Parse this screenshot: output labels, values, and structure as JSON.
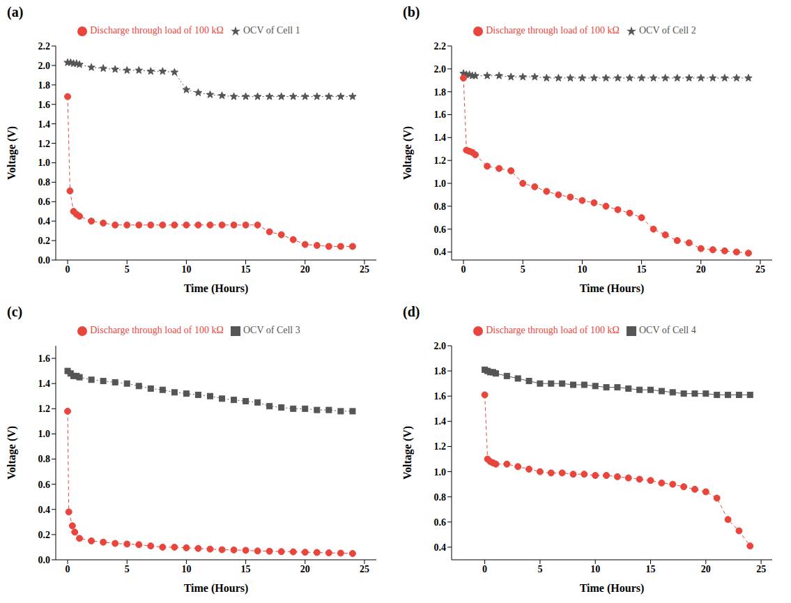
{
  "chart_data": [
    {
      "label": "(a)",
      "type": "line",
      "x_label": "Time (Hours)",
      "y_label": "Voltage (V)",
      "xlim": [
        -1,
        26
      ],
      "xticks": [
        0,
        5,
        10,
        15,
        20,
        25
      ],
      "ylim": [
        0,
        2.2
      ],
      "yticks": [
        {
          "value": 0,
          "label": "0.0"
        },
        0.2,
        0.4,
        0.6,
        0.8,
        {
          "value": 1,
          "label": "1.0"
        },
        1.2,
        1.4,
        1.6,
        1.8,
        {
          "value": 2,
          "label": "2.0"
        },
        2.2
      ],
      "grid": false,
      "legend": "top",
      "series": [
        {
          "name": "OCV of Cell 1",
          "color": "#555555",
          "marker": "star",
          "line_style": "dotted",
          "x": [
            0,
            0.25,
            0.5,
            0.75,
            1,
            2,
            3,
            4,
            5,
            6,
            7,
            8,
            9,
            10,
            11,
            12,
            13,
            14,
            15,
            16,
            17,
            18,
            19,
            20,
            21,
            22,
            23,
            24
          ],
          "values": [
            2.03,
            2.03,
            2.02,
            2.02,
            2.01,
            1.98,
            1.97,
            1.96,
            1.95,
            1.95,
            1.94,
            1.94,
            1.93,
            1.75,
            1.72,
            1.7,
            1.69,
            1.68,
            1.68,
            1.68,
            1.68,
            1.68,
            1.68,
            1.68,
            1.68,
            1.68,
            1.68,
            1.68
          ]
        },
        {
          "name": "Discharge through load of 100 kΩ",
          "color": "#e8463c",
          "marker": "circle",
          "line_style": "dashed",
          "x": [
            0,
            0.2,
            0.5,
            0.75,
            1,
            2,
            3,
            4,
            5,
            6,
            7,
            8,
            9,
            10,
            11,
            12,
            13,
            14,
            15,
            16,
            17,
            18,
            19,
            20,
            21,
            22,
            23,
            24
          ],
          "values": [
            1.68,
            0.71,
            0.5,
            0.47,
            0.45,
            0.4,
            0.38,
            0.36,
            0.36,
            0.36,
            0.36,
            0.36,
            0.36,
            0.36,
            0.36,
            0.36,
            0.36,
            0.36,
            0.36,
            0.36,
            0.29,
            0.26,
            0.21,
            0.16,
            0.15,
            0.14,
            0.14,
            0.14
          ]
        }
      ]
    },
    {
      "label": "(b)",
      "type": "line",
      "x_label": "Time (Hours)",
      "y_label": "Voltage (V)",
      "xlim": [
        -1,
        26
      ],
      "xticks": [
        0,
        5,
        10,
        15,
        20,
        25
      ],
      "ylim": [
        0.33,
        2.2
      ],
      "yticks": [
        0.4,
        0.6,
        0.8,
        {
          "value": 1,
          "label": "1.0"
        },
        1.2,
        1.4,
        1.6,
        1.8,
        {
          "value": 2,
          "label": "2.0"
        },
        2.2
      ],
      "grid": false,
      "legend": "top",
      "series": [
        {
          "name": "OCV of Cell 2",
          "color": "#555555",
          "marker": "star",
          "line_style": "dotted",
          "x": [
            0,
            0.25,
            0.5,
            0.75,
            1,
            2,
            3,
            4,
            5,
            6,
            7,
            8,
            9,
            10,
            11,
            12,
            13,
            14,
            15,
            16,
            17,
            18,
            19,
            20,
            21,
            22,
            23,
            24
          ],
          "values": [
            1.96,
            1.95,
            1.95,
            1.94,
            1.94,
            1.94,
            1.94,
            1.93,
            1.93,
            1.93,
            1.92,
            1.92,
            1.92,
            1.92,
            1.92,
            1.92,
            1.92,
            1.92,
            1.92,
            1.92,
            1.92,
            1.92,
            1.92,
            1.92,
            1.92,
            1.92,
            1.92,
            1.92
          ]
        },
        {
          "name": "Discharge through load of 100 kΩ",
          "color": "#e8463c",
          "marker": "circle",
          "line_style": "dashed",
          "x": [
            0,
            0.25,
            0.5,
            0.75,
            1,
            2,
            3,
            4,
            5,
            6,
            7,
            8,
            9,
            10,
            11,
            12,
            13,
            14,
            15,
            16,
            17,
            18,
            19,
            20,
            21,
            22,
            23,
            24
          ],
          "values": [
            1.92,
            1.29,
            1.28,
            1.27,
            1.25,
            1.15,
            1.13,
            1.11,
            1.0,
            0.97,
            0.93,
            0.9,
            0.88,
            0.85,
            0.83,
            0.8,
            0.77,
            0.74,
            0.7,
            0.6,
            0.55,
            0.5,
            0.48,
            0.43,
            0.42,
            0.41,
            0.4,
            0.39
          ]
        }
      ]
    },
    {
      "label": "(c)",
      "type": "line",
      "x_label": "Time (Hours)",
      "y_label": "Voltage (V)",
      "xlim": [
        -1,
        26
      ],
      "xticks": [
        0,
        5,
        10,
        15,
        20,
        25
      ],
      "ylim": [
        0,
        1.7
      ],
      "yticks": [
        {
          "value": 0,
          "label": "0.0"
        },
        0.2,
        0.4,
        0.6,
        0.8,
        {
          "value": 1,
          "label": "1.0"
        },
        1.2,
        1.4,
        1.6
      ],
      "grid": false,
      "legend": "top",
      "series": [
        {
          "name": "OCV of Cell 3",
          "color": "#555555",
          "marker": "square",
          "line_style": "dotted",
          "x": [
            0,
            0.25,
            0.5,
            0.75,
            1,
            2,
            3,
            4,
            5,
            6,
            7,
            8,
            9,
            10,
            11,
            12,
            13,
            14,
            15,
            16,
            17,
            18,
            19,
            20,
            21,
            22,
            23,
            24
          ],
          "values": [
            1.5,
            1.48,
            1.46,
            1.46,
            1.45,
            1.43,
            1.42,
            1.41,
            1.4,
            1.38,
            1.36,
            1.35,
            1.33,
            1.32,
            1.31,
            1.3,
            1.28,
            1.27,
            1.26,
            1.25,
            1.22,
            1.21,
            1.2,
            1.2,
            1.19,
            1.19,
            1.18,
            1.18
          ]
        },
        {
          "name": "Discharge through load of 100 kΩ",
          "color": "#e8463c",
          "marker": "circle",
          "line_style": "dashed",
          "x": [
            0,
            0.1,
            0.4,
            0.6,
            1,
            2,
            3,
            4,
            5,
            6,
            7,
            8,
            9,
            10,
            11,
            12,
            13,
            14,
            15,
            16,
            17,
            18,
            19,
            20,
            21,
            22,
            23,
            24
          ],
          "values": [
            1.18,
            0.38,
            0.27,
            0.22,
            0.17,
            0.15,
            0.14,
            0.13,
            0.125,
            0.12,
            0.11,
            0.1,
            0.1,
            0.095,
            0.09,
            0.085,
            0.08,
            0.078,
            0.075,
            0.07,
            0.068,
            0.065,
            0.063,
            0.06,
            0.058,
            0.055,
            0.053,
            0.05
          ]
        }
      ]
    },
    {
      "label": "(d)",
      "type": "line",
      "x_label": "Time (Hours)",
      "y_label": "Voltage (V)",
      "xlim": [
        -3,
        26
      ],
      "xticks": [
        0,
        5,
        10,
        15,
        20,
        25
      ],
      "ylim": [
        0.3,
        2.0
      ],
      "yticks": [
        0.4,
        0.6,
        0.8,
        {
          "value": 1,
          "label": "1.0"
        },
        1.2,
        1.4,
        1.6,
        1.8,
        {
          "value": 2,
          "label": "2.0"
        }
      ],
      "grid": false,
      "legend": "top",
      "series": [
        {
          "name": "OCV of Cell 4",
          "color": "#555555",
          "marker": "square",
          "line_style": "solid",
          "x": [
            0,
            0.25,
            0.5,
            0.75,
            1,
            2,
            3,
            4,
            5,
            6,
            7,
            8,
            9,
            10,
            11,
            12,
            13,
            14,
            15,
            16,
            17,
            18,
            19,
            20,
            21,
            22,
            23,
            24
          ],
          "values": [
            1.81,
            1.8,
            1.79,
            1.79,
            1.78,
            1.76,
            1.74,
            1.72,
            1.7,
            1.7,
            1.7,
            1.69,
            1.69,
            1.68,
            1.67,
            1.67,
            1.66,
            1.65,
            1.65,
            1.64,
            1.63,
            1.62,
            1.62,
            1.62,
            1.61,
            1.61,
            1.61,
            1.61
          ]
        },
        {
          "name": "Discharge through load of 100 kΩ",
          "color": "#e8463c",
          "marker": "circle",
          "line_style": "dashed",
          "x": [
            0,
            0.25,
            0.5,
            0.75,
            1,
            2,
            3,
            4,
            5,
            6,
            7,
            8,
            9,
            10,
            11,
            12,
            13,
            14,
            15,
            16,
            17,
            18,
            19,
            20,
            21,
            22,
            23,
            24
          ],
          "values": [
            1.61,
            1.1,
            1.08,
            1.07,
            1.06,
            1.06,
            1.04,
            1.02,
            1.0,
            0.99,
            0.99,
            0.98,
            0.98,
            0.97,
            0.97,
            0.96,
            0.95,
            0.94,
            0.93,
            0.91,
            0.9,
            0.88,
            0.86,
            0.84,
            0.79,
            0.62,
            0.53,
            0.41
          ]
        }
      ]
    }
  ]
}
